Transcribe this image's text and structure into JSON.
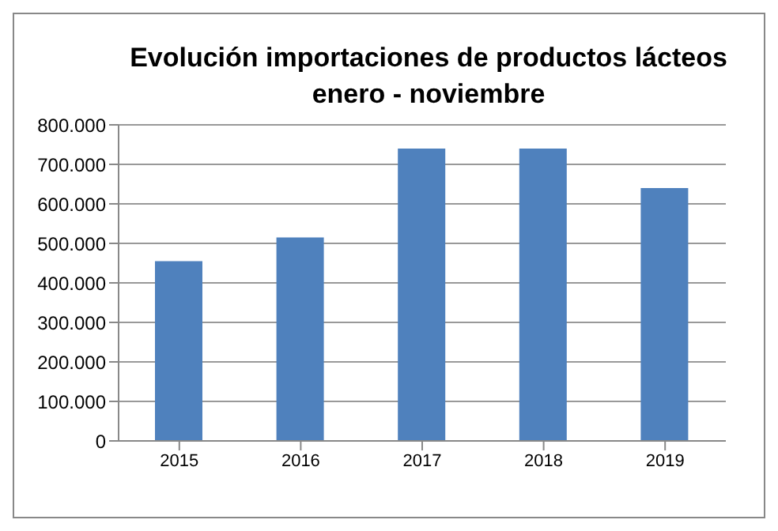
{
  "chart_data": {
    "type": "bar",
    "title": "Evolución importaciones de productos lácteos\nenero - noviembre",
    "categories": [
      "2015",
      "2016",
      "2017",
      "2018",
      "2019"
    ],
    "values": [
      455000,
      515000,
      740000,
      740000,
      640000
    ],
    "color": "#4f81bd",
    "ylim": [
      0,
      800000
    ],
    "yticks": [
      {
        "value": 0,
        "label": "0"
      },
      {
        "value": 100000,
        "label": "100.000"
      },
      {
        "value": 200000,
        "label": "200.000"
      },
      {
        "value": 300000,
        "label": "300.000"
      },
      {
        "value": 400000,
        "label": "400.000"
      },
      {
        "value": 500000,
        "label": "500.000"
      },
      {
        "value": 600000,
        "label": "600.000"
      },
      {
        "value": 700000,
        "label": "700.000"
      },
      {
        "value": 800000,
        "label": "800.000"
      }
    ],
    "grid": "y",
    "legend": false
  }
}
